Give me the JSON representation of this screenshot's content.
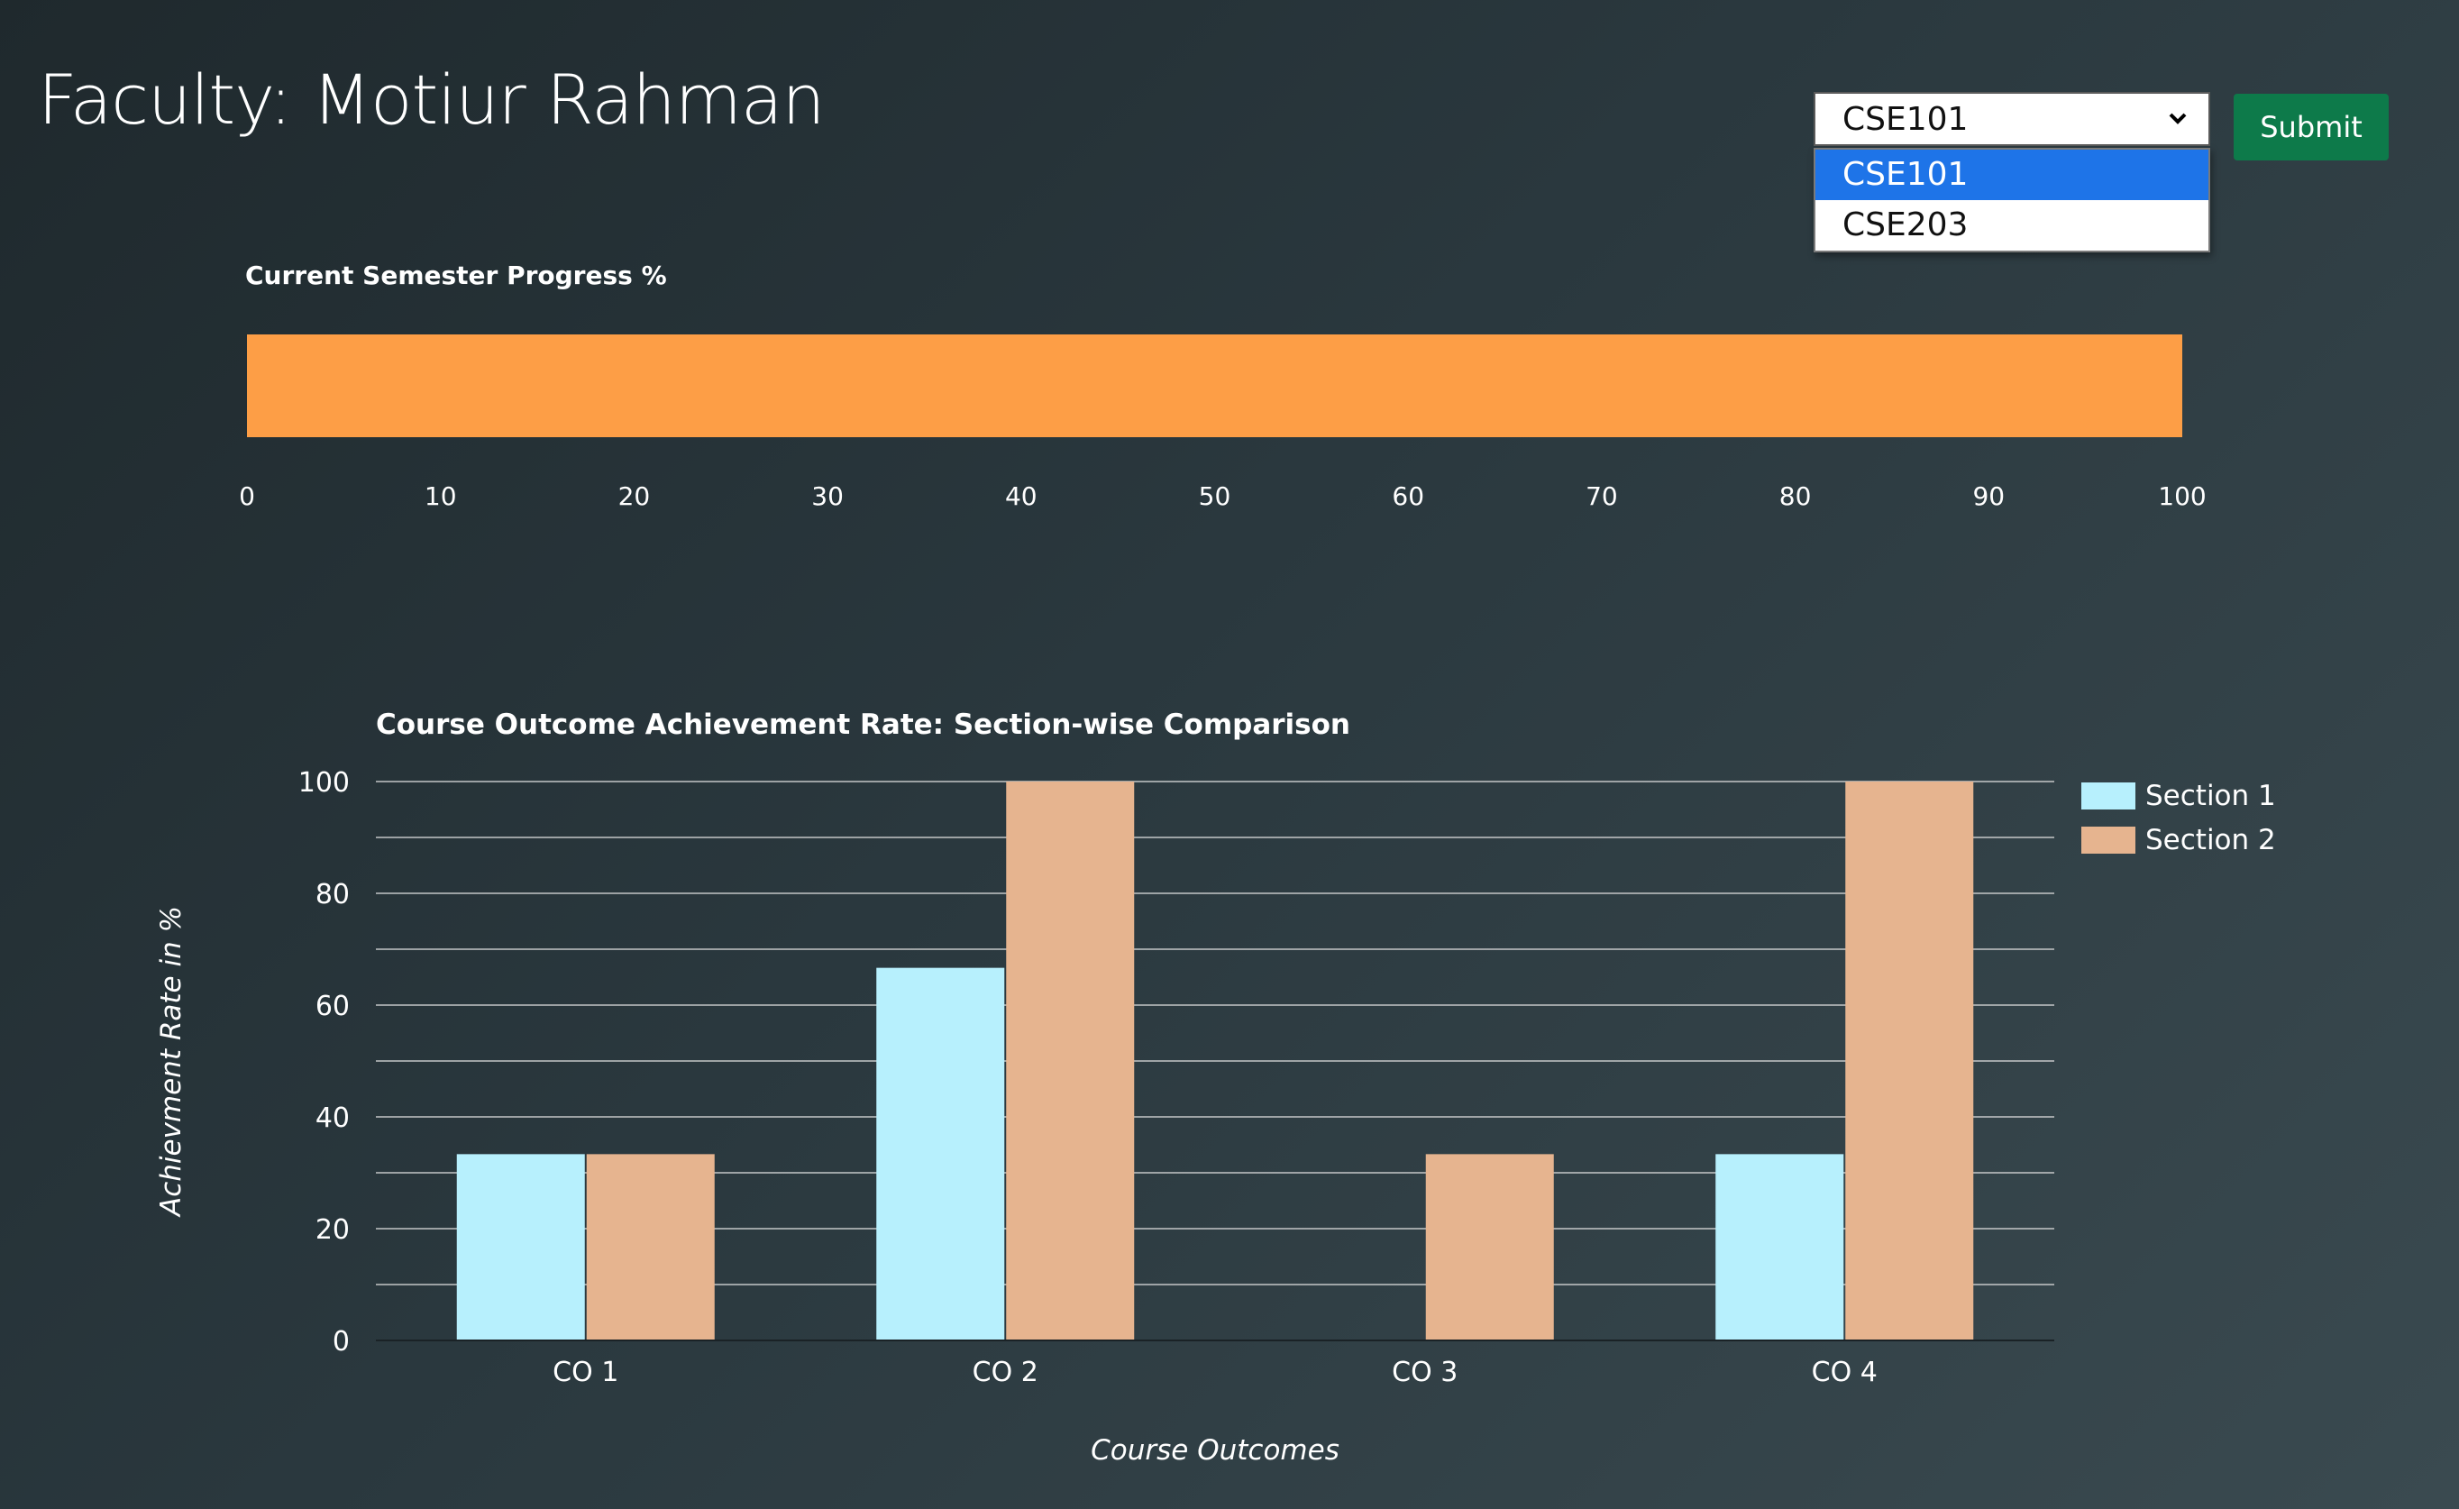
{
  "header": {
    "title": "Faculty: Motiur Rahman"
  },
  "course_select": {
    "selected": "CSE101",
    "options": [
      "CSE101",
      "CSE203"
    ],
    "submit_label": "Submit"
  },
  "colors": {
    "progress_bar": "#fd9e46",
    "section1": "#b7f0fd",
    "section2": "#e6b48f",
    "submit_button": "#0d7a4a",
    "selected_option": "#1e74e8"
  },
  "chart_data": [
    {
      "type": "bar",
      "orientation": "horizontal",
      "title": "Current Semester Progress %",
      "values": [
        100
      ],
      "xlim": [
        0,
        100
      ],
      "xticks": [
        0,
        10,
        20,
        30,
        40,
        50,
        60,
        70,
        80,
        90,
        100
      ],
      "grid": false,
      "legend": "none"
    },
    {
      "type": "bar",
      "title": "Course Outcome Achievement Rate: Section-wise Comparison",
      "xlabel": "Course Outcomes",
      "ylabel": "Achievment Rate in %",
      "categories": [
        "CO 1",
        "CO 2",
        "CO 3",
        "CO 4"
      ],
      "series": [
        {
          "name": "Section 1",
          "values": [
            33.33,
            66.67,
            0,
            33.33
          ]
        },
        {
          "name": "Section 2",
          "values": [
            33.33,
            100,
            33.33,
            100
          ]
        }
      ],
      "ylim": [
        0,
        100
      ],
      "yticks": [
        0,
        20,
        40,
        60,
        80,
        100
      ],
      "grid": true,
      "legend": "right"
    }
  ]
}
